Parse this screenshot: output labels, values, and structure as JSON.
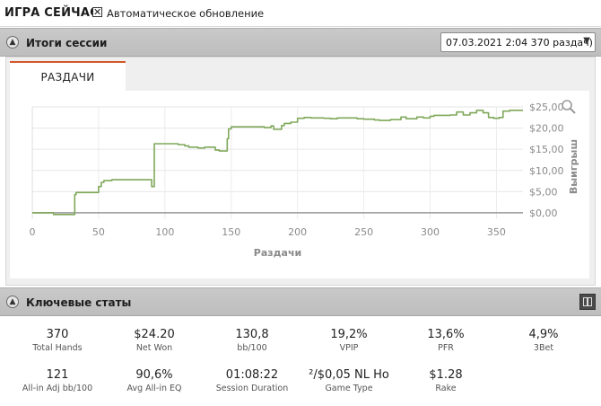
{
  "header": {
    "title": "ИГРА СЕЙЧАС",
    "auto_update_label": "Автоматическое обновление",
    "auto_update_checked": true
  },
  "session_section": {
    "title": "Итоги сессии",
    "session_select_value": "07.03.2021 2:04 370 раздач)",
    "tabs": [
      {
        "label": "РАЗДАЧИ",
        "active": true
      }
    ]
  },
  "chart_data": {
    "type": "line",
    "xlabel": "Раздачи",
    "ylabel": "Выигрыш",
    "xlim": [
      0,
      370
    ],
    "ylim": [
      -1.5,
      25
    ],
    "x_ticks": [
      0,
      50,
      100,
      150,
      200,
      250,
      300,
      350
    ],
    "x_tick_labels": [
      "0",
      "50",
      "100",
      "150",
      "200",
      "250",
      "300",
      "350"
    ],
    "y_ticks": [
      0,
      5,
      10,
      15,
      20,
      25
    ],
    "y_tick_labels": [
      "$0,00",
      "$5,00",
      "$10,00",
      "$15,00",
      "$20,00",
      "$25,00"
    ],
    "grid": true,
    "series": [
      {
        "color": "#7fa85a",
        "x": [
          0,
          15,
          16,
          30,
          32,
          33,
          48,
          50,
          52,
          54,
          57,
          60,
          62,
          90,
          92,
          93,
          110,
          115,
          118,
          125,
          130,
          138,
          141,
          145,
          147,
          148,
          150,
          170,
          175,
          180,
          182,
          188,
          190,
          195,
          200,
          205,
          210,
          220,
          225,
          230,
          245,
          250,
          258,
          262,
          270,
          278,
          282,
          290,
          295,
          300,
          303,
          315,
          320,
          325,
          330,
          335,
          340,
          344,
          348,
          352,
          355,
          360,
          370
        ],
        "y": [
          0,
          0,
          -0.4,
          -0.4,
          4.3,
          4.8,
          4.8,
          6.2,
          7.2,
          7.6,
          7.6,
          7.8,
          7.8,
          6.2,
          16.3,
          16.3,
          16.1,
          15.8,
          15.5,
          15.3,
          15.5,
          14.8,
          14.6,
          14.6,
          17.5,
          19.8,
          20.3,
          20.3,
          20.1,
          20.5,
          19.7,
          20.6,
          21.1,
          21.4,
          22.3,
          22.5,
          22.4,
          22.3,
          22.2,
          22.4,
          22.2,
          22.1,
          21.9,
          21.8,
          22.0,
          22.6,
          22.2,
          22.6,
          22.4,
          22.8,
          23.0,
          23.1,
          23.8,
          23.1,
          23.6,
          24.2,
          23.6,
          22.5,
          22.3,
          22.5,
          24.0,
          24.2,
          24.2
        ]
      },
      {
        "color": "#999999",
        "x": [
          0,
          370
        ],
        "y": [
          0,
          0
        ]
      }
    ]
  },
  "key_stats_section": {
    "title": "Ключевые статы",
    "stats": [
      {
        "value": "370",
        "label": "Total Hands"
      },
      {
        "value": "$24.20",
        "label": "Net Won"
      },
      {
        "value": "130,8",
        "label": "bb/100"
      },
      {
        "value": "19,2%",
        "label": "VPIP"
      },
      {
        "value": "13,6%",
        "label": "PFR"
      },
      {
        "value": "4,9%",
        "label": "3Bet"
      },
      {
        "value": "121",
        "label": "All-in Adj bb/100"
      },
      {
        "value": "90,6%",
        "label": "Avg All-in EQ"
      },
      {
        "value": "01:08:22",
        "label": "Session Duration"
      },
      {
        "value": "²/$0,05 NL Ho",
        "label": "Game Type"
      },
      {
        "value": "$1.28",
        "label": "Rake"
      }
    ]
  },
  "icons": {
    "collapse": "chevron-up-circle-icon",
    "dropdown": "chevron-down-icon",
    "zoom": "magnifier-icon",
    "settings": "gear-icon",
    "info": "info-icon",
    "columns": "columns-icon"
  }
}
